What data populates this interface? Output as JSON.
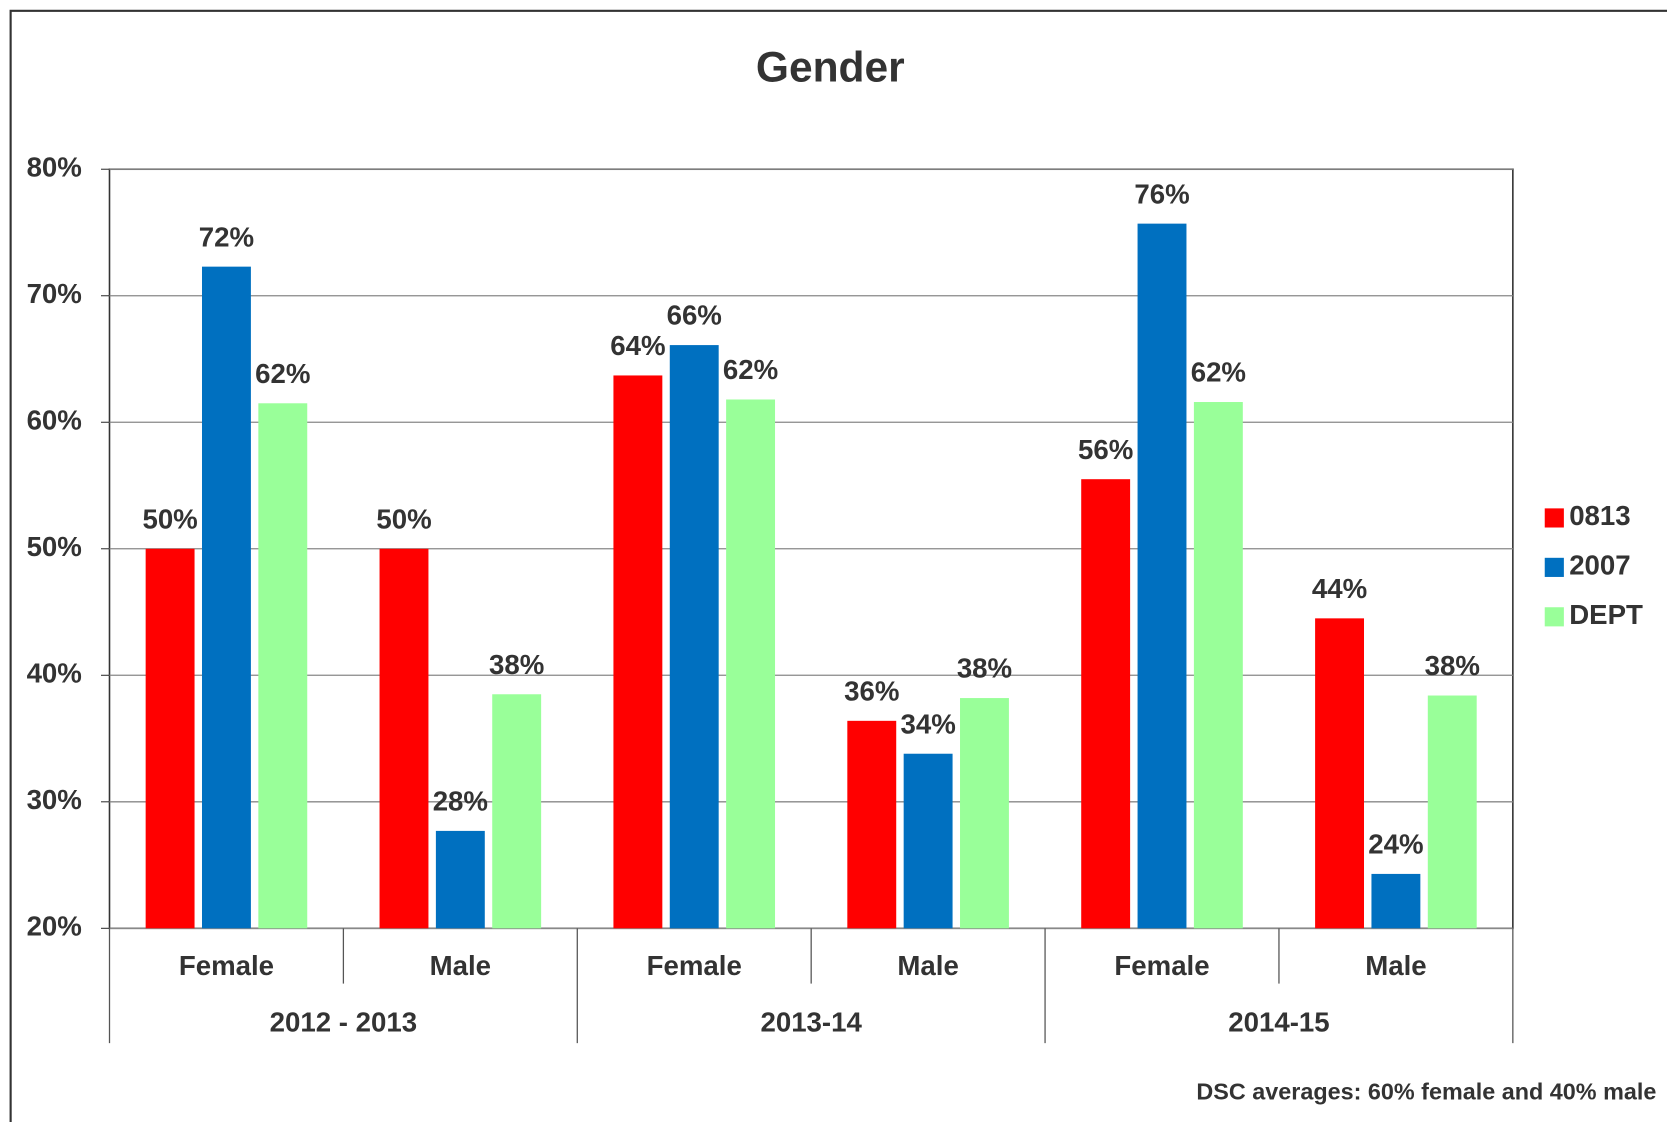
{
  "chart_data": {
    "type": "bar",
    "title": "Gender",
    "categories": [
      "Female",
      "Male",
      "Female",
      "Male",
      "Female",
      "Male"
    ],
    "groups": [
      "2012 - 2013",
      "2013-14",
      "2014-15"
    ],
    "series": [
      {
        "name": "0813",
        "color": "#ff0000",
        "values": [
          50,
          50,
          63.7,
          36.4,
          55.5,
          44.5
        ],
        "value_labels": [
          "50%",
          "50%",
          "64%",
          "36%",
          "56%",
          "44%"
        ]
      },
      {
        "name": "2007",
        "color": "#0070c0",
        "values": [
          72.3,
          27.7,
          66.1,
          33.8,
          75.7,
          24.3
        ],
        "value_labels": [
          "72%",
          "28%",
          "66%",
          "34%",
          "76%",
          "24%"
        ]
      },
      {
        "name": "DEPT",
        "color": "#99ff99",
        "values": [
          61.5,
          38.5,
          61.8,
          38.2,
          61.6,
          38.4
        ],
        "value_labels": [
          "62%",
          "38%",
          "62%",
          "38%",
          "62%",
          "38%"
        ]
      }
    ],
    "ylim": [
      20,
      80
    ],
    "yticks": [
      {
        "value": 20,
        "label": "20%"
      },
      {
        "value": 30,
        "label": "30%"
      },
      {
        "value": 40,
        "label": "40%"
      },
      {
        "value": 50,
        "label": "50%"
      },
      {
        "value": 60,
        "label": "60%"
      },
      {
        "value": 70,
        "label": "70%"
      },
      {
        "value": 80,
        "label": "80%"
      }
    ],
    "grid": true,
    "legend": "right",
    "annotation": "DSC averages: 60% female and 40% male"
  }
}
